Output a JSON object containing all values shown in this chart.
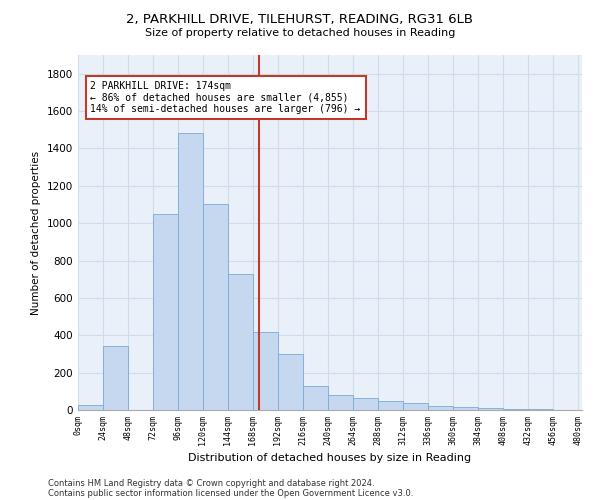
{
  "title_line1": "2, PARKHILL DRIVE, TILEHURST, READING, RG31 6LB",
  "title_line2": "Size of property relative to detached houses in Reading",
  "xlabel": "Distribution of detached houses by size in Reading",
  "ylabel": "Number of detached properties",
  "bar_color": "#c5d8f0",
  "bar_edge_color": "#7aaad4",
  "background_color": "#eaf0f9",
  "grid_color": "#d0dce8",
  "vline_x": 174,
  "vline_color": "#c0392b",
  "annotation_text": "2 PARKHILL DRIVE: 174sqm\n← 86% of detached houses are smaller (4,855)\n14% of semi-detached houses are larger (796) →",
  "annotation_box_color": "#c0392b",
  "bin_width": 24,
  "bin_starts": [
    0,
    24,
    48,
    72,
    96,
    120,
    144,
    168,
    192,
    216,
    240,
    264,
    288,
    312,
    336,
    360,
    384,
    408,
    432,
    456
  ],
  "bin_heights": [
    25,
    340,
    0,
    1050,
    1480,
    1100,
    730,
    420,
    300,
    130,
    80,
    65,
    50,
    35,
    20,
    15,
    10,
    5,
    3,
    2
  ],
  "ylim": [
    0,
    1900
  ],
  "yticks": [
    0,
    200,
    400,
    600,
    800,
    1000,
    1200,
    1400,
    1600,
    1800
  ],
  "xtick_labels": [
    "0sqm",
    "24sqm",
    "48sqm",
    "72sqm",
    "96sqm",
    "120sqm",
    "144sqm",
    "168sqm",
    "192sqm",
    "216sqm",
    "240sqm",
    "264sqm",
    "288sqm",
    "312sqm",
    "336sqm",
    "360sqm",
    "384sqm",
    "408sqm",
    "432sqm",
    "456sqm",
    "480sqm"
  ],
  "footnote_line1": "Contains HM Land Registry data © Crown copyright and database right 2024.",
  "footnote_line2": "Contains public sector information licensed under the Open Government Licence v3.0.",
  "figsize": [
    6.0,
    5.0
  ],
  "dpi": 100
}
